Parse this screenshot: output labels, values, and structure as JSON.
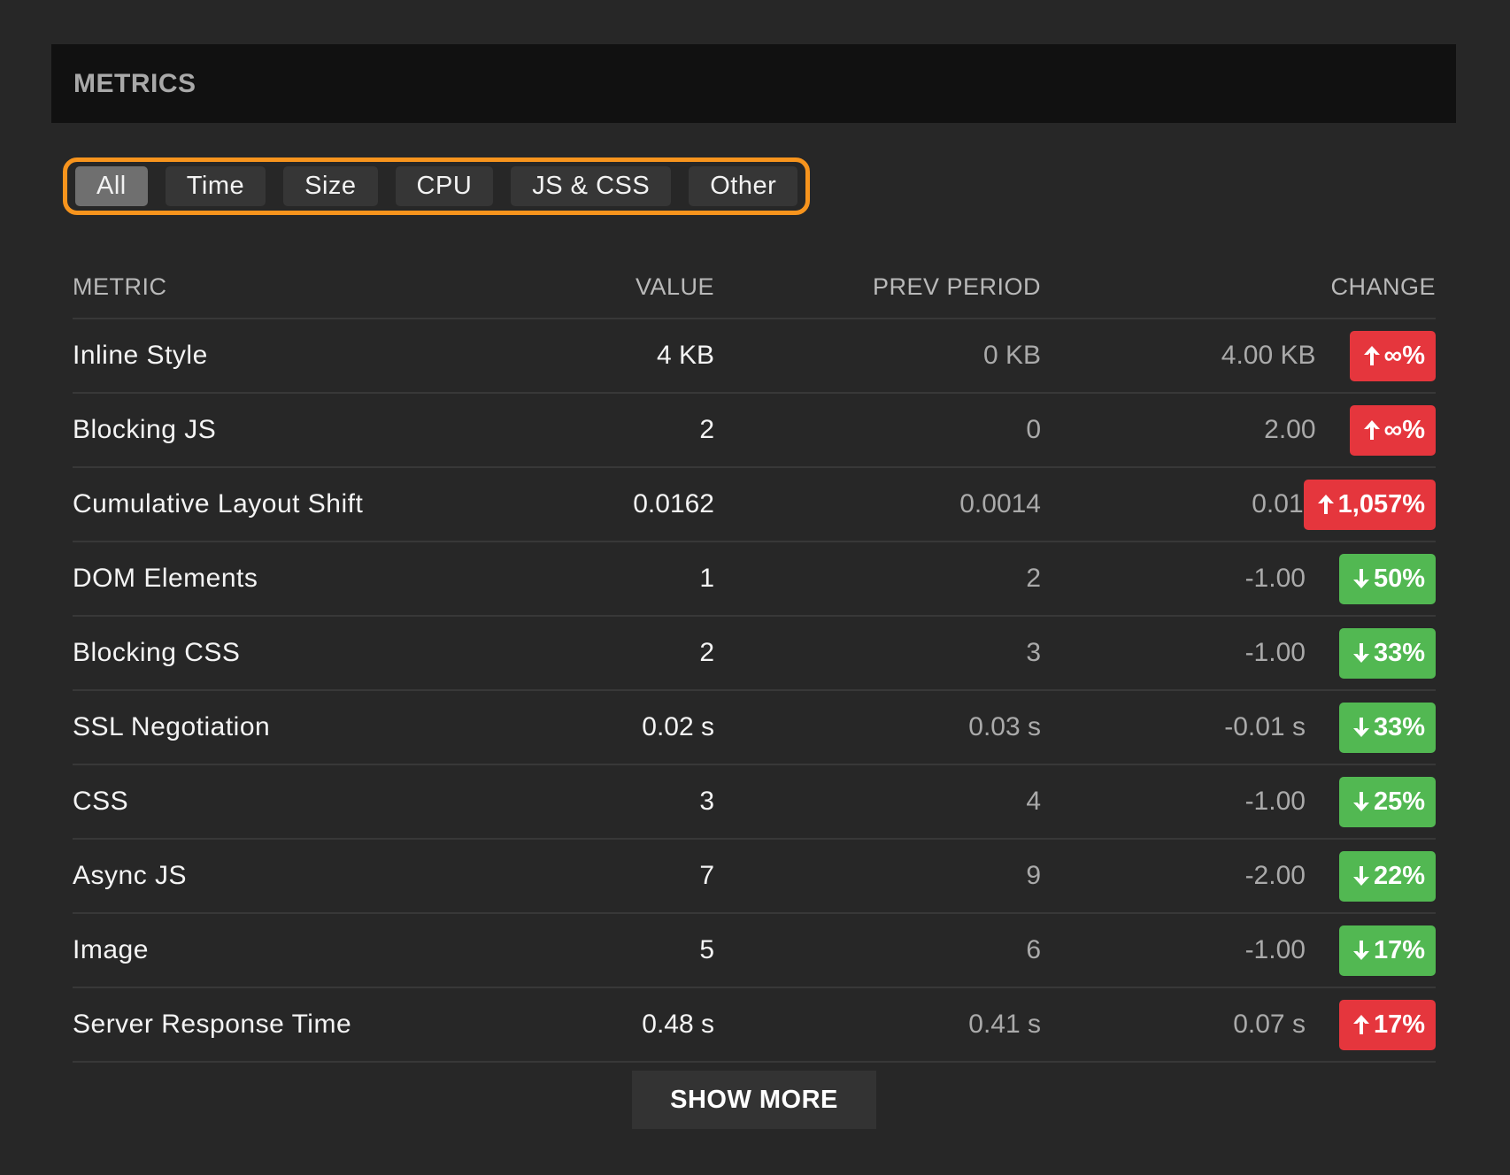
{
  "header": {
    "title": "METRICS"
  },
  "filters": [
    {
      "label": "All",
      "active": true
    },
    {
      "label": "Time",
      "active": false
    },
    {
      "label": "Size",
      "active": false
    },
    {
      "label": "CPU",
      "active": false
    },
    {
      "label": "JS & CSS",
      "active": false
    },
    {
      "label": "Other",
      "active": false
    }
  ],
  "table": {
    "headers": {
      "metric": "METRIC",
      "value": "VALUE",
      "prev": "PREV PERIOD",
      "change": "CHANGE"
    },
    "rows": [
      {
        "metric": "Inline Style",
        "value": "4 KB",
        "prev": "0 KB",
        "diff": "4.00 KB",
        "badge": "∞%",
        "direction": "up"
      },
      {
        "metric": "Blocking JS",
        "value": "2",
        "prev": "0",
        "diff": "2.00",
        "badge": "∞%",
        "direction": "up"
      },
      {
        "metric": "Cumulative Layout Shift",
        "value": "0.0162",
        "prev": "0.0014",
        "diff": "0.01",
        "badge": "1,057%",
        "direction": "up"
      },
      {
        "metric": "DOM Elements",
        "value": "1",
        "prev": "2",
        "diff": "-1.00",
        "badge": "50%",
        "direction": "down"
      },
      {
        "metric": "Blocking CSS",
        "value": "2",
        "prev": "3",
        "diff": "-1.00",
        "badge": "33%",
        "direction": "down"
      },
      {
        "metric": "SSL Negotiation",
        "value": "0.02 s",
        "prev": "0.03 s",
        "diff": "-0.01 s",
        "badge": "33%",
        "direction": "down"
      },
      {
        "metric": "CSS",
        "value": "3",
        "prev": "4",
        "diff": "-1.00",
        "badge": "25%",
        "direction": "down"
      },
      {
        "metric": "Async JS",
        "value": "7",
        "prev": "9",
        "diff": "-2.00",
        "badge": "22%",
        "direction": "down"
      },
      {
        "metric": "Image",
        "value": "5",
        "prev": "6",
        "diff": "-1.00",
        "badge": "17%",
        "direction": "down"
      },
      {
        "metric": "Server Response Time",
        "value": "0.48 s",
        "prev": "0.41 s",
        "diff": "0.07 s",
        "badge": "17%",
        "direction": "up"
      }
    ]
  },
  "show_more": {
    "label": "SHOW MORE"
  },
  "colors": {
    "accent": "#f7941d",
    "up": "#e5363d",
    "down": "#52b852"
  }
}
